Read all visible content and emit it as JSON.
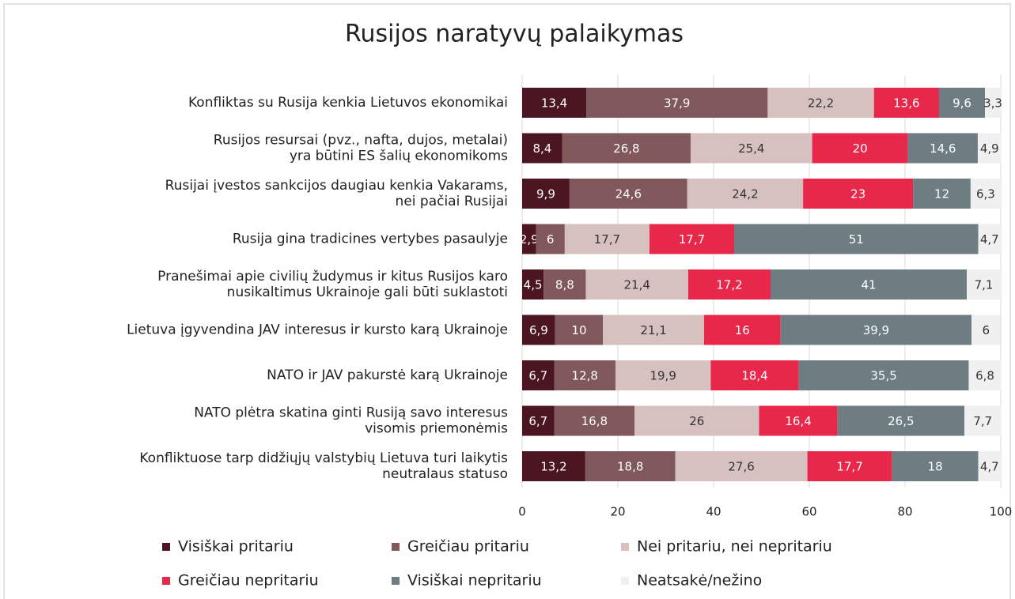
{
  "chart_data": {
    "type": "stacked-bar-horizontal",
    "title": "Rusijos naratyvų palaikymas",
    "categories": [
      "Konfliktas su Rusija kenkia Lietuvos ekonomikai",
      "Rusijos resursai (pvz., nafta, dujos, metalai)\nyra būtini ES šalių ekonomikoms",
      "Rusijai įvestos sankcijos daugiau kenkia Vakarams,\nnei pačiai Rusijai",
      "Rusija gina tradicines vertybes pasaulyje",
      "Pranešimai apie civilių žudymus ir kitus Rusijos karo\nnusikaltimus Ukrainoje gali būti suklastoti",
      "Lietuva įgyvendina JAV interesus ir kursto karą Ukrainoje",
      "NATO ir JAV pakurstė karą Ukrainoje",
      "NATO plėtra skatina ginti Rusiją savo interesus\nvisomis priemonėmis",
      "Konfliktuose tarp didžiųjų valstybių Lietuva turi laikytis\nneutralaus statuso"
    ],
    "series": [
      {
        "name": "Visiškai pritariu",
        "color": "#4b1521",
        "values": [
          13.4,
          8.4,
          9.9,
          2.9,
          4.5,
          6.9,
          6.7,
          6.7,
          13.2
        ],
        "value_labels": [
          "13,4",
          "8,4",
          "9,9",
          "2,9",
          "4,5",
          "6,9",
          "6,7",
          "6,7",
          "13,2"
        ]
      },
      {
        "name": "Greičiau pritariu",
        "color": "#80575a",
        "values": [
          37.9,
          26.8,
          24.6,
          6,
          8.8,
          10,
          12.8,
          16.8,
          18.8
        ],
        "value_labels": [
          "37,9",
          "26,8",
          "24,6",
          "6",
          "8,8",
          "10",
          "12,8",
          "16,8",
          "18,8"
        ]
      },
      {
        "name": "Nei pritariu, nei nepritariu",
        "color": "#d7c1c0",
        "values": [
          22.2,
          25.4,
          24.2,
          17.7,
          21.4,
          21.1,
          19.9,
          26,
          27.6
        ],
        "value_labels": [
          "22,2",
          "25,4",
          "24,2",
          "17,7",
          "21,4",
          "21,1",
          "19,9",
          "26",
          "27,6"
        ]
      },
      {
        "name": "Greičiau nepritariu",
        "color": "#e8284b",
        "values": [
          13.6,
          20,
          23,
          17.7,
          17.2,
          16,
          18.4,
          16.4,
          17.7
        ],
        "value_labels": [
          "13,6",
          "20",
          "23",
          "17,7",
          "17,2",
          "16",
          "18,4",
          "16,4",
          "17,7"
        ]
      },
      {
        "name": "Visiškai nepritariu",
        "color": "#6e7d81",
        "values": [
          9.6,
          14.6,
          12,
          51,
          41,
          39.9,
          35.5,
          26.5,
          18
        ],
        "value_labels": [
          "9,6",
          "14,6",
          "12",
          "51",
          "41",
          "39,9",
          "35,5",
          "26,5",
          "18"
        ]
      },
      {
        "name": "Neatsakė/nežino",
        "color": "#f0f0f0",
        "values": [
          3.3,
          4.9,
          6.3,
          4.7,
          7.1,
          6,
          6.8,
          7.7,
          4.7
        ],
        "value_labels": [
          "3,3",
          "4,9",
          "6,3",
          "4,7",
          "7,1",
          "6",
          "6,8",
          "7,7",
          "4,7"
        ]
      }
    ],
    "xlim": [
      0,
      100
    ],
    "xticks": [
      0,
      20,
      40,
      60,
      80,
      100
    ],
    "grid": true
  }
}
